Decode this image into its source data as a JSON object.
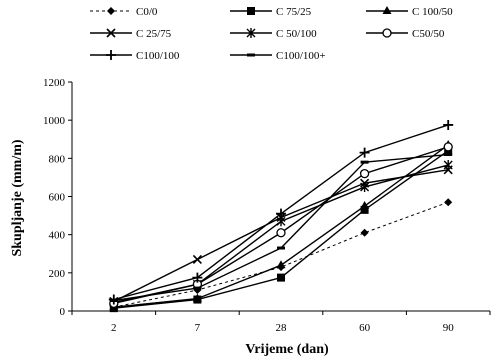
{
  "chart_data": {
    "type": "line",
    "xlabel": "Vrijeme  (dan)",
    "ylabel": "Skupljanje (mm/m)",
    "categories": [
      "2",
      "7",
      "28",
      "60",
      "90"
    ],
    "ylim": [
      0,
      1200
    ],
    "yticks": [
      "0",
      "200",
      "400",
      "600",
      "800",
      "1000",
      "1200"
    ],
    "grid": false,
    "legend_position": "top",
    "series": [
      {
        "name": "C0/0",
        "marker": "diamond",
        "dash": true,
        "values": [
          20,
          110,
          230,
          410,
          570
        ]
      },
      {
        "name": "C 75/25",
        "marker": "square",
        "dash": false,
        "values": [
          15,
          60,
          175,
          530,
          840
        ]
      },
      {
        "name": "C 100/50",
        "marker": "triangle",
        "dash": false,
        "values": [
          20,
          65,
          240,
          550,
          870
        ]
      },
      {
        "name": "C 25/75",
        "marker": "x",
        "dash": false,
        "values": [
          50,
          270,
          490,
          670,
          740
        ]
      },
      {
        "name": "C 50/100",
        "marker": "star",
        "dash": false,
        "values": [
          45,
          140,
          470,
          650,
          765
        ]
      },
      {
        "name": "C50/50",
        "marker": "circle",
        "dash": false,
        "values": [
          40,
          140,
          410,
          720,
          860
        ]
      },
      {
        "name": "C100/100",
        "marker": "plus",
        "dash": false,
        "values": [
          60,
          175,
          510,
          830,
          975
        ]
      },
      {
        "name": "C100/100+",
        "marker": "dash",
        "dash": false,
        "values": [
          55,
          120,
          330,
          780,
          820
        ]
      }
    ]
  }
}
